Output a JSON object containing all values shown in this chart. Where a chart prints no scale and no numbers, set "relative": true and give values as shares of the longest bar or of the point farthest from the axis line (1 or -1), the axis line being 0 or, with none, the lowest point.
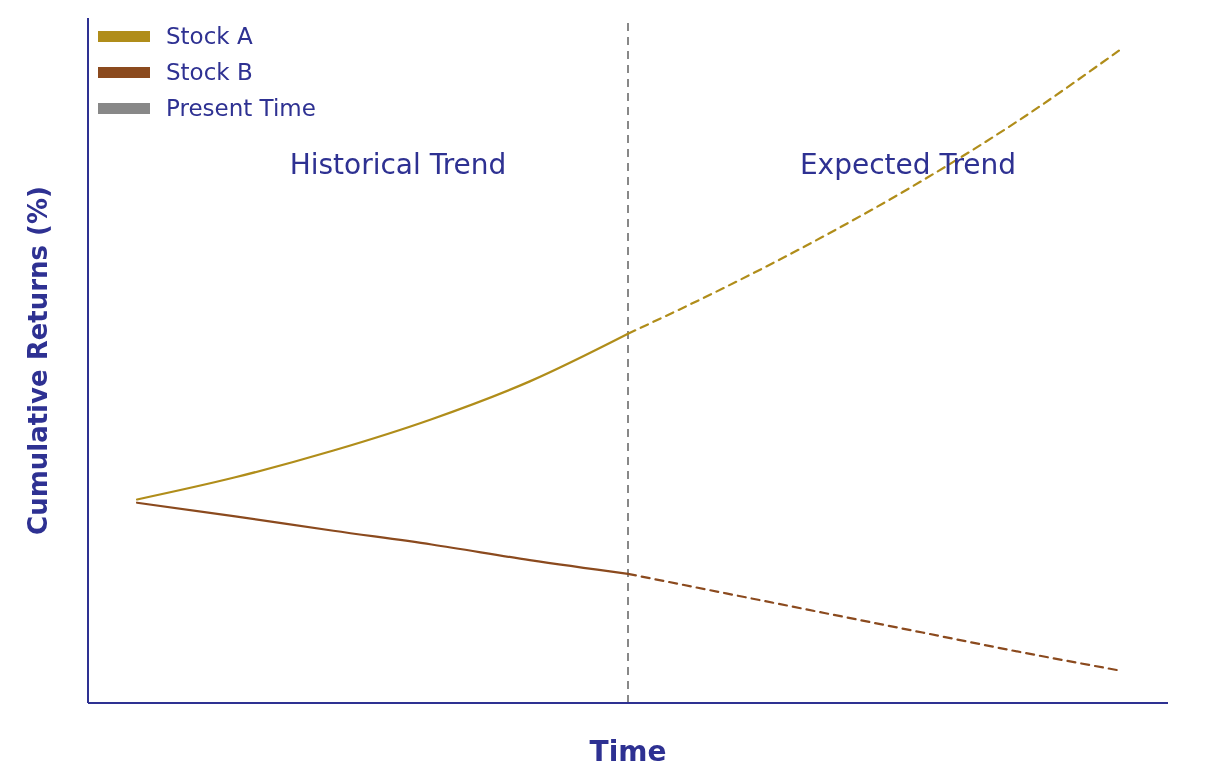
{
  "chart_data": {
    "type": "line",
    "relative": true,
    "xlabel": "Time",
    "ylabel": "Cumulative Returns (%)",
    "categories": [
      null,
      null,
      null,
      null,
      null,
      null,
      null,
      null,
      null,
      null,
      null
    ],
    "series": [
      {
        "name": "Stock A",
        "color": "#b08d1a",
        "line_style": "solid",
        "values": [
          0.312,
          0.346,
          0.387,
          0.435,
          0.493,
          0.566,
          null,
          null,
          null,
          null,
          null
        ]
      },
      {
        "name": "Stock B",
        "color": "#8b4a1e",
        "line_style": "solid",
        "values": [
          0.307,
          0.286,
          0.264,
          0.243,
          0.219,
          0.198,
          null,
          null,
          null,
          null,
          null
        ]
      },
      {
        "color": "#b08d1a",
        "line_style": "dashed",
        "values": [
          null,
          null,
          null,
          null,
          null,
          0.566,
          0.638,
          0.716,
          0.801,
          0.895,
          1.0
        ]
      },
      {
        "color": "#8b4a1e",
        "line_style": "dashed",
        "values": [
          null,
          null,
          null,
          null,
          null,
          0.198,
          0.168,
          0.138,
          0.108,
          0.078,
          0.05
        ]
      }
    ],
    "annotations": [
      "Historical Trend",
      "Expected Trend",
      "Present Time"
    ],
    "legend": "top left",
    "marker": "none",
    "grid": false
  }
}
